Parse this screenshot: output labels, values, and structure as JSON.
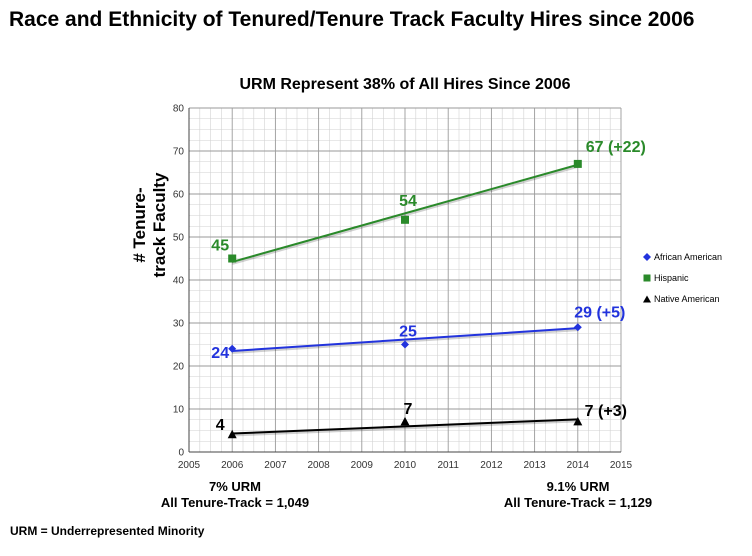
{
  "page_title": "Race and Ethnicity of Tenured/Tenure Track Faculty Hires since 2006",
  "notes": {
    "left_line1": "7% URM",
    "left_line2": "All Tenure-Track = 1,049",
    "right_line1": "9.1% URM",
    "right_line2": "All Tenure-Track = 1,129"
  },
  "footnote": "URM = Underrepresented Minority",
  "chart_data": {
    "type": "line",
    "title": "URM Represent 38% of All Hires Since 2006",
    "xlabel": "",
    "ylabel": "# Tenure-track Faculty",
    "xlim": [
      2005,
      2015
    ],
    "ylim": [
      0,
      80
    ],
    "xticks": [
      2005,
      2006,
      2007,
      2008,
      2009,
      2010,
      2011,
      2012,
      2013,
      2014,
      2015
    ],
    "yticks": [
      0,
      10,
      20,
      30,
      40,
      50,
      60,
      70,
      80
    ],
    "grid": true,
    "legend_position": "right",
    "series": [
      {
        "name": "African American",
        "color": "#2233dd",
        "marker": "diamond",
        "x": [
          2006,
          2010,
          2014
        ],
        "values": [
          24,
          25,
          29
        ],
        "trend": [
          23.5,
          28.8
        ],
        "point_labels": [
          "24",
          "25",
          "29 (+5)"
        ]
      },
      {
        "name": "Hispanic",
        "color": "#2a8a2a",
        "marker": "square",
        "x": [
          2006,
          2010,
          2014
        ],
        "values": [
          45,
          54,
          67
        ],
        "trend": [
          44.2,
          66.8
        ],
        "point_labels": [
          "45",
          "54",
          "67 (+22)"
        ]
      },
      {
        "name": "Native American",
        "color": "#000000",
        "marker": "triangle",
        "x": [
          2006,
          2010,
          2014
        ],
        "values": [
          4,
          7,
          7
        ],
        "trend": [
          4.3,
          7.6
        ],
        "point_labels": [
          "4",
          "7",
          "7 (+3)"
        ]
      }
    ]
  }
}
